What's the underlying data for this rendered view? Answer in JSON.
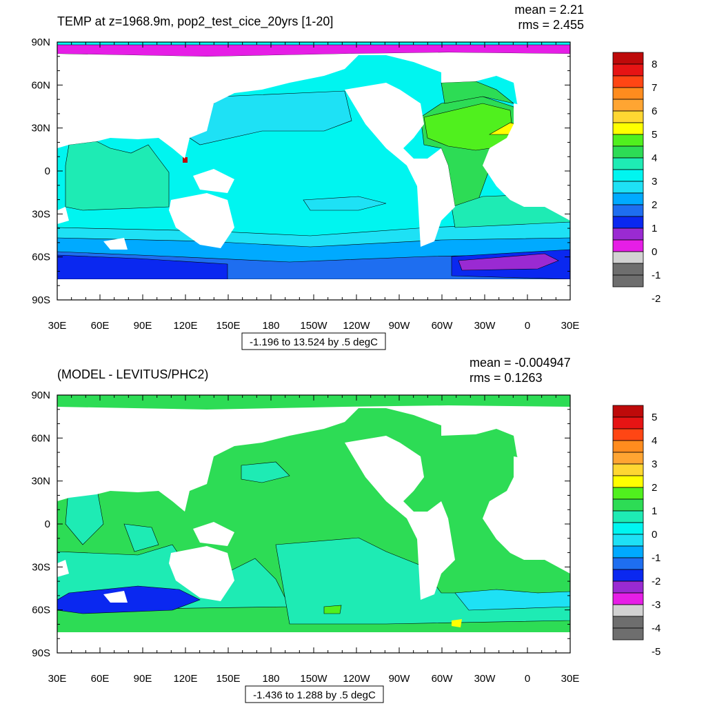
{
  "panels": [
    {
      "id": "temp",
      "title": "TEMP at z=1968.9m, pop2_test_cice_20yrs [1-20]",
      "mean_text": "mean = 2.21",
      "rms_text": "rms = 2.455",
      "range_text": "-1.196 to 13.524 by .5 degC",
      "colorbar_labels": [
        "8",
        "7",
        "6",
        "5",
        "4",
        "3",
        "2",
        "1",
        "0",
        "-1",
        "-2"
      ]
    },
    {
      "id": "diff",
      "title": "(MODEL - LEVITUS/PHC2)",
      "mean_text": "mean = -0.004947",
      "rms_text": "rms = 0.1263",
      "range_text": "-1.436 to 1.288 by .5 degC",
      "colorbar_labels": [
        "5",
        "4",
        "3",
        "2",
        "1",
        "0",
        "-1",
        "-2",
        "-3",
        "-4",
        "-5"
      ]
    }
  ],
  "lat_labels": [
    "90N",
    "60N",
    "30N",
    "0",
    "30S",
    "60S",
    "90S"
  ],
  "lon_labels": [
    "30E",
    "60E",
    "90E",
    "120E",
    "150E",
    "180",
    "150W",
    "120W",
    "90W",
    "60W",
    "30W",
    "0",
    "30E"
  ],
  "colors": {
    "palette": [
      "#6e6e6e",
      "#d2d2d2",
      "#e61ee6",
      "#9a2ad2",
      "#0a28f0",
      "#1e6ef0",
      "#00aaff",
      "#1ee1f5",
      "#00f5f0",
      "#1eebb4",
      "#2ddc55",
      "#50f01e",
      "#ffff00",
      "#ffd732",
      "#ffa532",
      "#ff8c1e",
      "#ff4614",
      "#e61414",
      "#be0a0a"
    ],
    "land": "#ffffff",
    "deep_water": "#1e6ef0",
    "antarctic_shelf": "#0a28f0"
  }
}
